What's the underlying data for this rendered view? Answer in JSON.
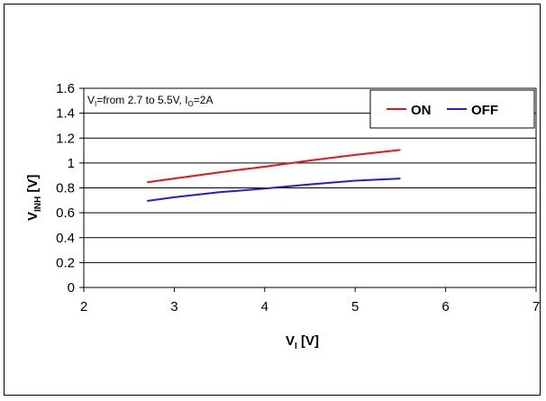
{
  "chart_data": {
    "type": "line",
    "annotation": {
      "p1": "V",
      "s1": "I",
      "p2": "=from 2.7 to 5.5V, I",
      "s2": "O",
      "p3": "=2A"
    },
    "xlabel": {
      "main": "V",
      "sub": "I",
      "unit": " [V]"
    },
    "ylabel": {
      "main": "V",
      "sub": "INH",
      "unit": " [V]"
    },
    "xlim": [
      2,
      7
    ],
    "ylim": [
      0,
      1.6
    ],
    "xticks": [
      "2",
      "3",
      "4",
      "5",
      "6",
      "7"
    ],
    "yticks": [
      "0",
      "0.2",
      "0.4",
      "0.6",
      "0.8",
      "1",
      "1.2",
      "1.4",
      "1.6"
    ],
    "grid": "horizontal",
    "legend_position": "top-right",
    "series": [
      {
        "name": "ON",
        "color": "#e8141c",
        "x": [
          2.7,
          3.0,
          3.5,
          4.0,
          4.5,
          5.0,
          5.5
        ],
        "y": [
          0.845,
          0.875,
          0.925,
          0.97,
          1.02,
          1.065,
          1.105
        ]
      },
      {
        "name": "OFF",
        "color": "#1f1fd2",
        "x": [
          2.7,
          3.0,
          3.5,
          4.0,
          4.5,
          5.0,
          5.5
        ],
        "y": [
          0.695,
          0.725,
          0.765,
          0.795,
          0.828,
          0.858,
          0.875
        ]
      }
    ]
  }
}
